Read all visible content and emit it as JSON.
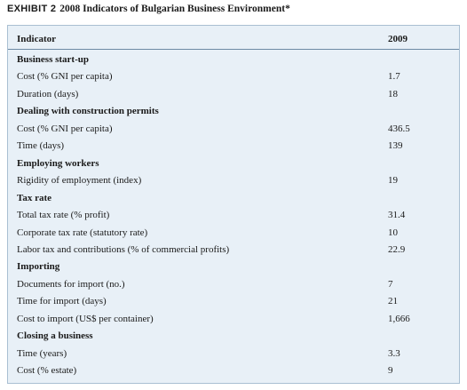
{
  "title": {
    "label": "EXHIBIT 2",
    "text": "2008 Indicators of Bulgarian Business Environment*"
  },
  "table": {
    "header": [
      "Indicator",
      "2009"
    ],
    "sections": [
      {
        "title": "Business start-up",
        "rows": [
          [
            "Cost (% GNI per capita)",
            "1.7"
          ],
          [
            "Duration (days)",
            "18"
          ]
        ]
      },
      {
        "title": "Dealing with construction permits",
        "rows": [
          [
            "Cost (% GNI per capita)",
            "436.5"
          ],
          [
            "Time (days)",
            "139"
          ]
        ]
      },
      {
        "title": "Employing workers",
        "rows": [
          [
            "Rigidity of employment (index)",
            "19"
          ]
        ]
      },
      {
        "title": "Tax rate",
        "rows": [
          [
            "Total tax rate (% profit)",
            "31.4"
          ],
          [
            "Corporate tax rate (statutory rate)",
            "10"
          ],
          [
            "Labor tax and contributions (% of commercial profits)",
            "22.9"
          ]
        ]
      },
      {
        "title": "Importing",
        "rows": [
          [
            "Documents for import (no.)",
            "7"
          ],
          [
            "Time for import (days)",
            "21"
          ],
          [
            "Cost to import (US$ per container)",
            "1,666"
          ]
        ]
      },
      {
        "title": "Closing a business",
        "rows": [
          [
            "Time (years)",
            "3.3"
          ],
          [
            "Cost (% estate)",
            "9"
          ]
        ]
      }
    ]
  }
}
